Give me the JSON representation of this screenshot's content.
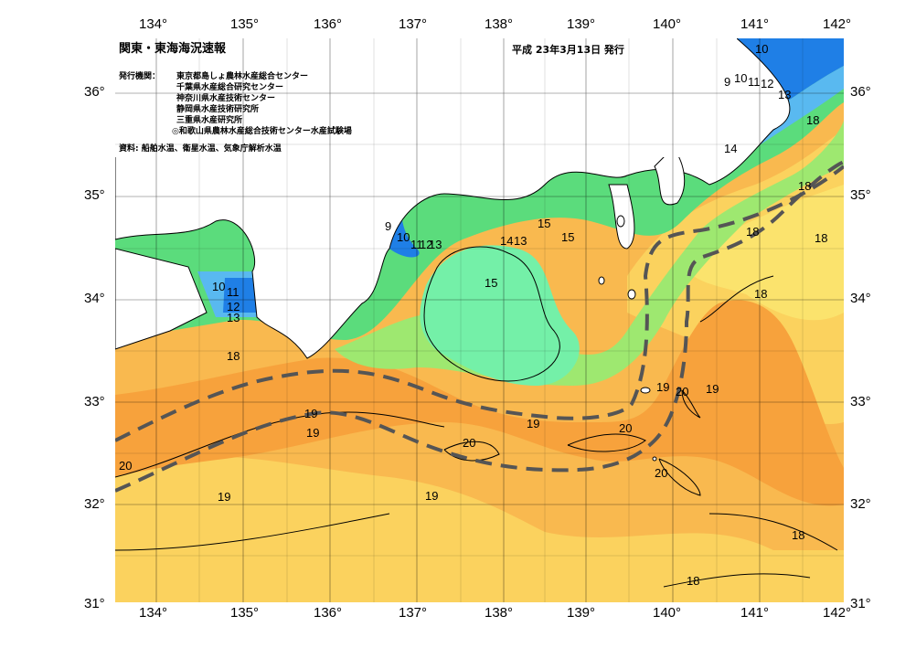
{
  "title": "関東・東海海況速報",
  "issue_date": "平成 23年3月13日 発行",
  "issuer_label": "発行機関：",
  "issuers": [
    "東京都島しょ農林水産総合センター",
    "千葉県水産総合研究センター",
    "神奈川県水産技術センター",
    "静岡県水産技術研究所",
    "三重県水産研究所",
    "◎和歌山県農林水産総合技術センター水産試験場"
  ],
  "source": "資料: 船舶水温、衛星水温、気象庁解析水温",
  "lon_ticks": [
    "134°",
    "135°",
    "136°",
    "137°",
    "138°",
    "139°",
    "140°",
    "141°",
    "142°"
  ],
  "lat_ticks": [
    "36°",
    "35°",
    "34°",
    "33°",
    "32°",
    "31°"
  ],
  "contour_labels": [
    "10",
    "9",
    "10",
    "11",
    "12",
    "13",
    "18",
    "14",
    "18",
    "18",
    "18",
    "9",
    "10",
    "11",
    "12",
    "13",
    "14",
    "13",
    "15",
    "15",
    "15",
    "18",
    "10",
    "11",
    "12",
    "13",
    "18",
    "19",
    "20",
    "19",
    "19",
    "20",
    "20",
    "20",
    "19",
    "19",
    "19",
    "20",
    "19",
    "18",
    "18"
  ],
  "colors": {
    "warm_orange": "#f7a23c",
    "orange": "#f9b94f",
    "yellow": "#fbd25e",
    "light_yellow": "#fbe36d",
    "green": "#5bdc7c",
    "light_green": "#9ee870",
    "cyan_green": "#74f0a8",
    "blue": "#1f7fe6",
    "light_blue": "#59b9f0",
    "kuroshio_axis": "#555555"
  }
}
